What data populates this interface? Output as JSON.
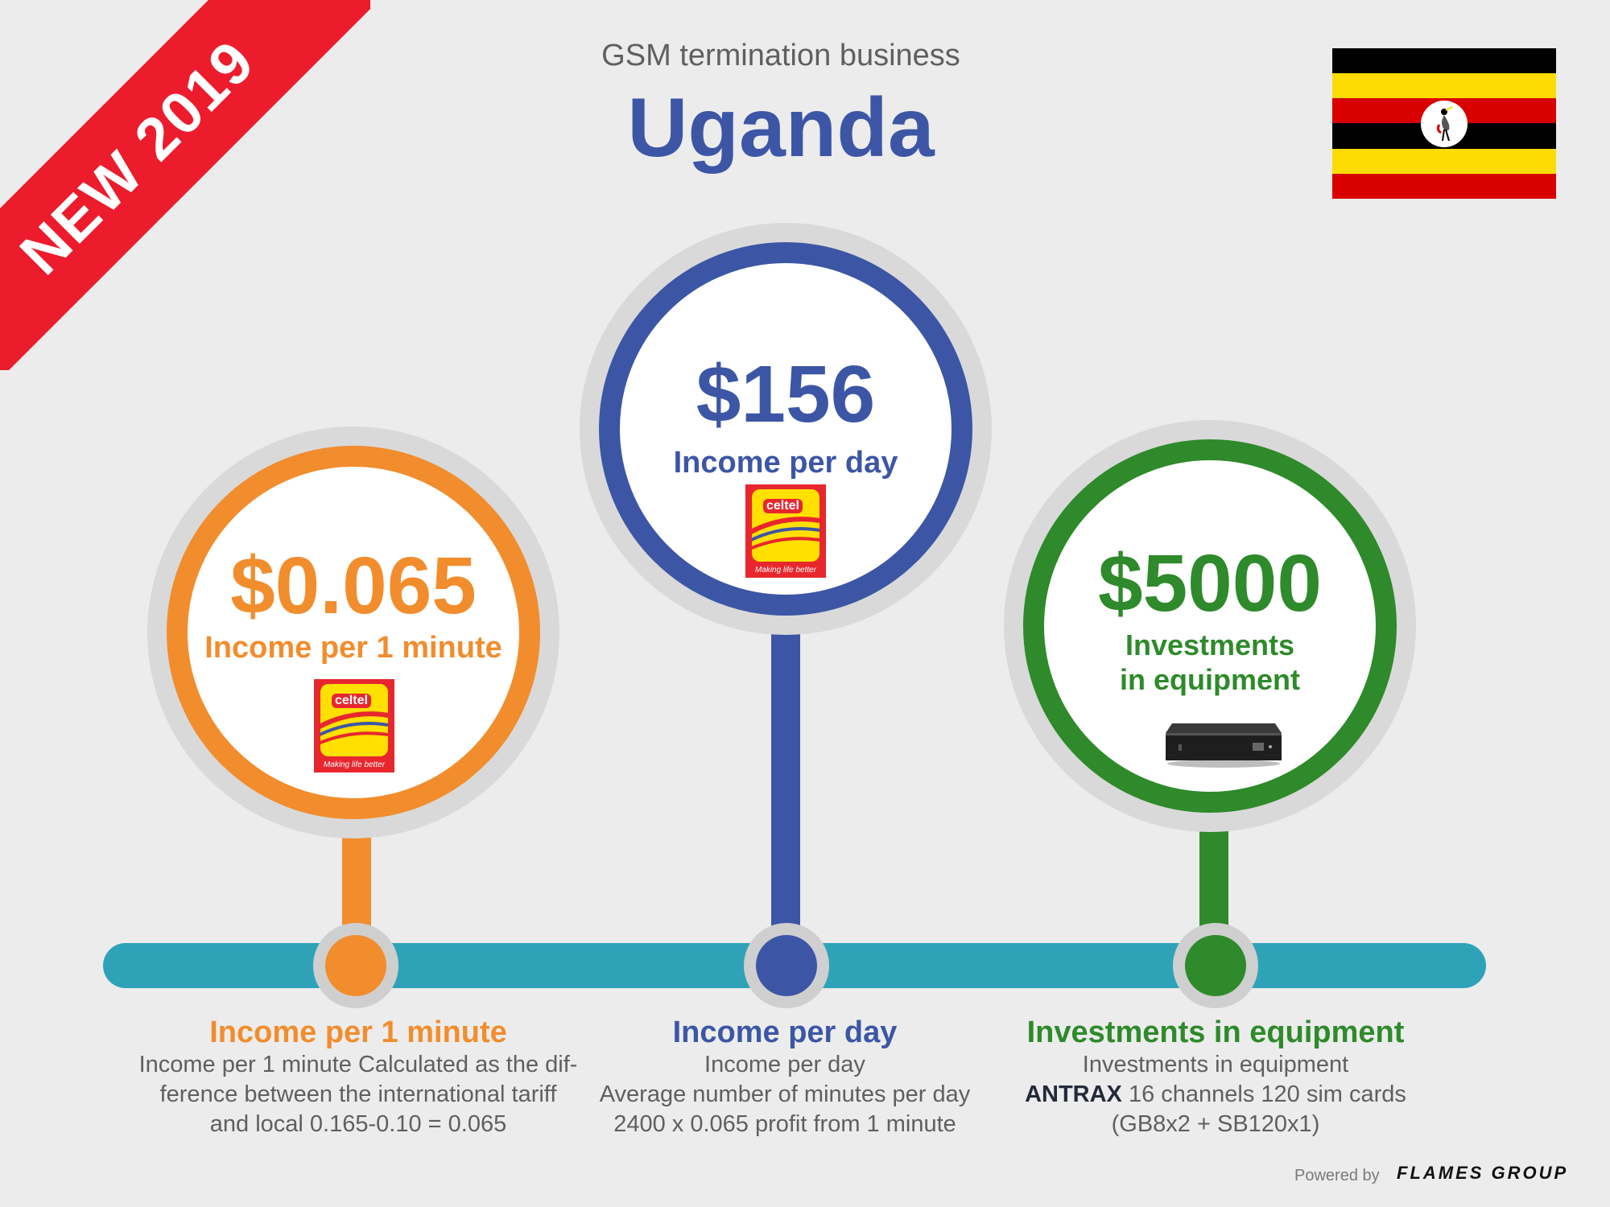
{
  "ribbon": {
    "text": "NEW 2019"
  },
  "header": {
    "subtitle": "GSM termination business",
    "title": "Uganda"
  },
  "colors": {
    "orange": "#f18d2d",
    "blue": "#3c56a5",
    "green": "#2e8a2a",
    "timeline": "#2ea3b8",
    "ribbon": "#ec1c2d"
  },
  "circles": [
    {
      "value": "$0.065",
      "label": "Income per 1 minute",
      "label_line2": "",
      "icon": "celtel-logo"
    },
    {
      "value": "$156",
      "label": "Income per day",
      "label_line2": "",
      "icon": "celtel-logo"
    },
    {
      "value": "$5000",
      "label": "Investments",
      "label_line2": "in equipment",
      "icon": "antrax-device"
    }
  ],
  "celtel_logo": {
    "brand": "celtel",
    "tagline": "Making life better"
  },
  "details": [
    {
      "title": "Income per 1 minute",
      "lines": [
        "Income per 1 minute Calculated as the dif-",
        "ference between the international tariff",
        "and local 0.165-0.10 = 0.065"
      ]
    },
    {
      "title": "Income per day",
      "lines": [
        "Income per day",
        "Average number of minutes per day",
        "2400 x 0.065 profit from 1 minute"
      ]
    },
    {
      "title": "Investments in equipment",
      "line1": "Investments in equipment",
      "line2_bold": "ANTRAX",
      "line2_rest": " 16 channels 120 sim cards",
      "line3": "(GB8x2  + SB120x1)"
    }
  ],
  "footer": {
    "powered_by": "Powered by",
    "brand": "FLAMES GROUP"
  }
}
